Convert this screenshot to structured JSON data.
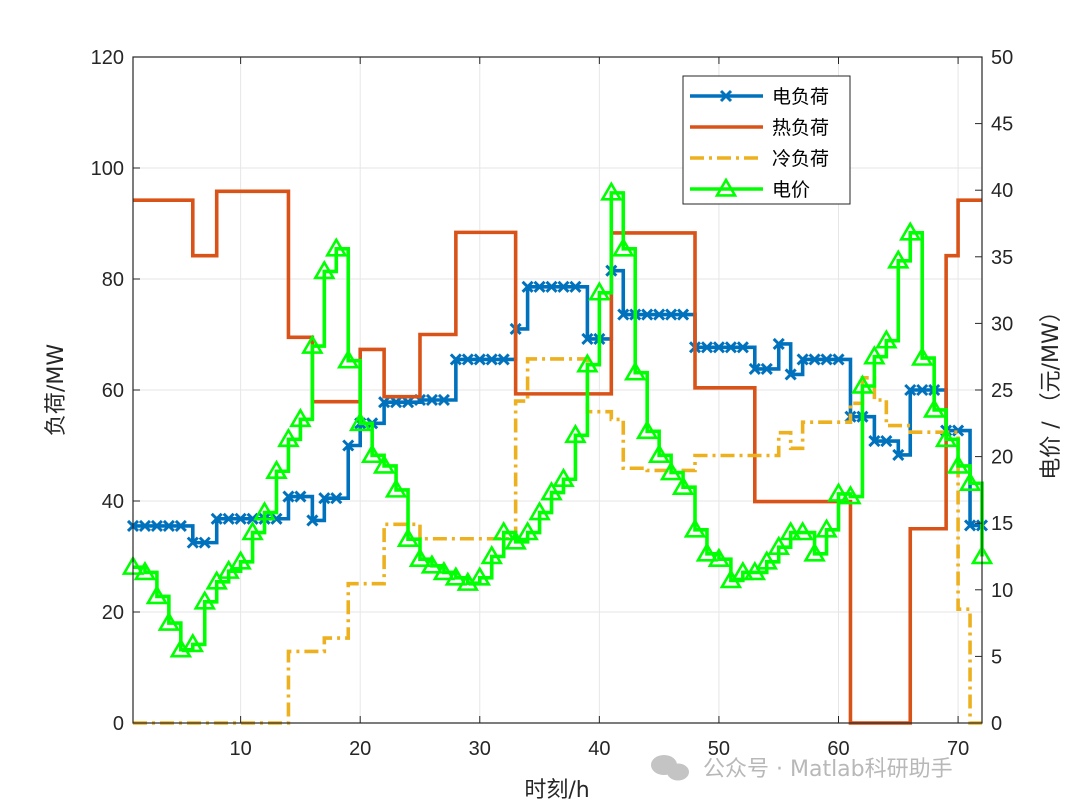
{
  "watermark": "公众号 · Matlab科研助手",
  "chart_data": {
    "type": "line",
    "xlabel": "时刻/h",
    "ylabel_left": "负荷/MW",
    "ylabel_right": "电价 / （元/MW）",
    "xlim": [
      1,
      72
    ],
    "ylim_left": [
      0,
      120
    ],
    "ylim_right": [
      0,
      50
    ],
    "x_ticks": [
      10,
      20,
      30,
      40,
      50,
      60,
      70
    ],
    "y_ticks_left": [
      0,
      20,
      40,
      60,
      80,
      100,
      120
    ],
    "y_ticks_right": [
      0,
      5,
      10,
      15,
      20,
      25,
      30,
      35,
      40,
      45,
      50
    ],
    "grid": true,
    "legend_position": "top-right",
    "x": [
      1,
      2,
      3,
      4,
      5,
      6,
      7,
      8,
      9,
      10,
      11,
      12,
      13,
      14,
      15,
      16,
      17,
      18,
      19,
      20,
      21,
      22,
      23,
      24,
      25,
      26,
      27,
      28,
      29,
      30,
      31,
      32,
      33,
      34,
      35,
      36,
      37,
      38,
      39,
      40,
      41,
      42,
      43,
      44,
      45,
      46,
      47,
      48,
      49,
      50,
      51,
      52,
      53,
      54,
      55,
      56,
      57,
      58,
      59,
      60,
      61,
      62,
      63,
      64,
      65,
      66,
      67,
      68,
      69,
      70,
      71,
      72
    ],
    "series": [
      {
        "name": "电负荷",
        "axis": "left",
        "color": "#0072BD",
        "style": "stairs",
        "marker": "x",
        "values": [
          35.5,
          35.5,
          35.5,
          35.5,
          35.5,
          32.5,
          32.5,
          36.8,
          36.8,
          36.8,
          36.8,
          36.8,
          36.8,
          40.8,
          40.8,
          36.5,
          40.5,
          40.5,
          50,
          54,
          54,
          57.8,
          57.8,
          57.8,
          58.2,
          58.2,
          58.2,
          65.5,
          65.5,
          65.5,
          65.5,
          65.5,
          71,
          78.6,
          78.6,
          78.6,
          78.6,
          78.6,
          69.2,
          69.2,
          81.5,
          73.6,
          73.6,
          73.6,
          73.6,
          73.6,
          73.6,
          67.7,
          67.7,
          67.7,
          67.7,
          67.7,
          63.8,
          63.8,
          68.3,
          62.8,
          65.5,
          65.5,
          65.5,
          65.5,
          55.2,
          55.2,
          50.8,
          50.8,
          48.3,
          60,
          60,
          60,
          52.7,
          52.7,
          35.6,
          35.6
        ]
      },
      {
        "name": "热负荷",
        "axis": "left",
        "color": "#D95319",
        "style": "stairs",
        "marker": "none",
        "values": [
          94.2,
          94.2,
          94.2,
          94.2,
          94.2,
          84.2,
          84.2,
          95.8,
          95.8,
          95.8,
          95.8,
          95.8,
          95.8,
          69.5,
          69.5,
          57.9,
          57.9,
          57.9,
          57.9,
          67.3,
          67.3,
          58.8,
          58.8,
          58.8,
          70,
          70,
          70,
          88.4,
          88.4,
          88.4,
          88.4,
          88.4,
          59.3,
          59.3,
          59.3,
          59.3,
          59.3,
          59.3,
          59.3,
          59.3,
          88.3,
          88.3,
          88.3,
          88.3,
          88.3,
          88.3,
          88.3,
          60.4,
          60.4,
          60.4,
          60.4,
          60.4,
          39.9,
          39.9,
          39.9,
          39.9,
          39.9,
          39.9,
          39.9,
          39.9,
          0,
          0,
          0,
          0,
          0,
          35,
          35,
          35,
          84.2,
          94.2,
          94.2,
          94.2
        ]
      },
      {
        "name": "冷负荷",
        "axis": "left",
        "color": "#EDB120",
        "style": "stairs-dashdot",
        "marker": "none",
        "values": [
          0,
          0,
          0,
          0,
          0,
          0,
          0,
          0,
          0,
          0,
          0,
          0,
          0,
          12.9,
          12.9,
          12.9,
          15.3,
          15.3,
          25.1,
          25.1,
          25.1,
          35.8,
          35.8,
          35.8,
          33.2,
          33.2,
          33.2,
          33.2,
          33.2,
          33.2,
          33.2,
          33.2,
          58,
          65.6,
          65.6,
          65.6,
          65.6,
          65.6,
          56.1,
          56.1,
          54.7,
          45.9,
          45.9,
          45.5,
          45.5,
          45.5,
          45.5,
          48.2,
          48.2,
          48.2,
          48.2,
          48.2,
          48.2,
          48.2,
          52.3,
          49.5,
          54.2,
          54.2,
          54.2,
          54.2,
          57.6,
          62.2,
          58.2,
          53.6,
          53.6,
          52.4,
          52.4,
          52.4,
          52.4,
          20.5,
          0,
          0
        ]
      },
      {
        "name": "电价",
        "axis": "right",
        "color": "#00FF00",
        "style": "stairs",
        "marker": "triangle",
        "values": [
          11.7,
          11.3,
          9.5,
          7.5,
          5.5,
          5.9,
          9.1,
          10.6,
          11.4,
          12.1,
          14.3,
          15.8,
          18.9,
          21.3,
          22.8,
          28.3,
          33.9,
          35.6,
          27.2,
          22.5,
          20.1,
          19.3,
          17.5,
          13.8,
          12.3,
          11.8,
          11.3,
          10.9,
          10.5,
          10.9,
          12.5,
          14.3,
          13.6,
          14.3,
          15.8,
          17.3,
          18.3,
          21.6,
          26.9,
          32.3,
          39.8,
          35.6,
          26.3,
          21.9,
          20.1,
          18.8,
          17.7,
          14.5,
          12.7,
          12.3,
          10.7,
          11.3,
          11.3,
          12.1,
          13.2,
          14.3,
          14.3,
          12.7,
          14.5,
          17.2,
          17,
          25.3,
          27.5,
          28.7,
          34.7,
          36.8,
          27.4,
          23.5,
          21.3,
          19.3,
          18,
          12.5
        ]
      }
    ]
  }
}
